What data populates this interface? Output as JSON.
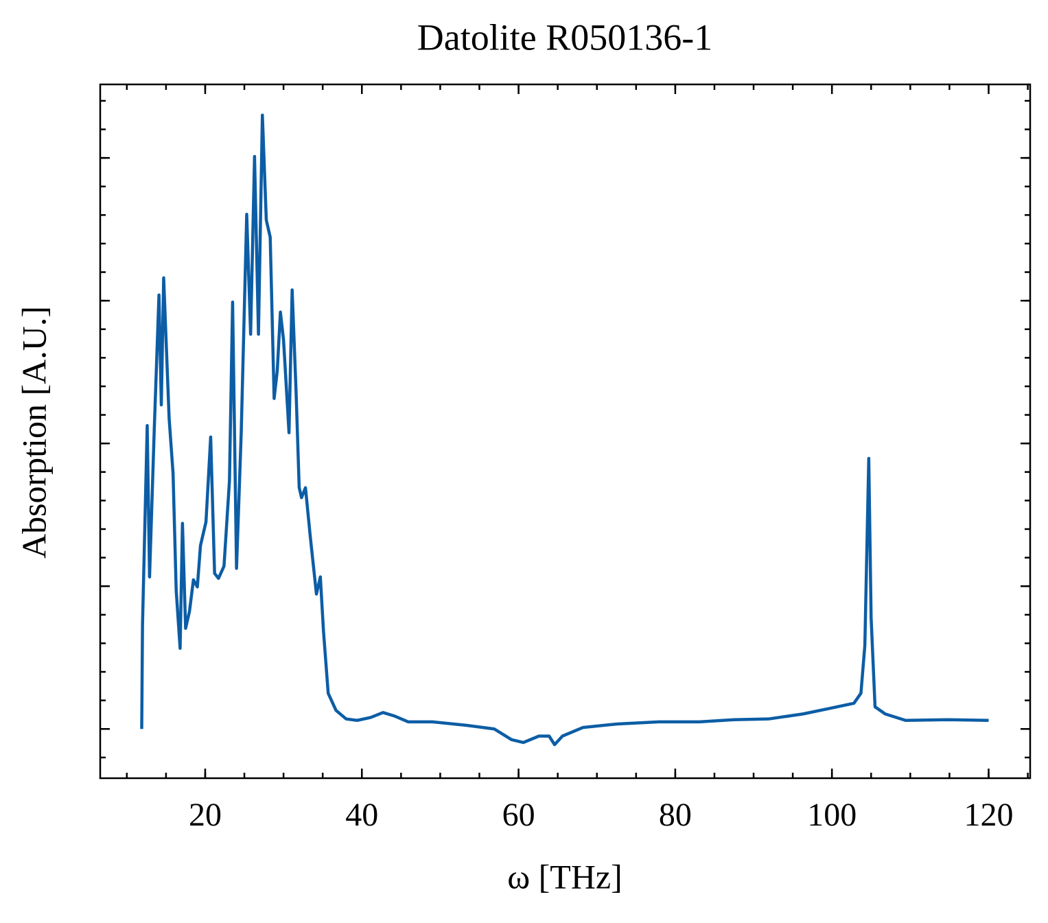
{
  "chart_data": {
    "type": "line",
    "title": "Datolite R050136-1",
    "xlabel": "ω [THz]",
    "ylabel": "Absorption [A.U.]",
    "series": [
      {
        "color": "#0c5da5",
        "x": [
          11.9,
          12.0,
          12.6,
          12.9,
          13.5,
          14.1,
          14.4,
          14.7,
          15.4,
          15.9,
          16.3,
          16.8,
          17.1,
          17.5,
          18.0,
          18.5,
          19.0,
          19.4,
          20.1,
          20.7,
          21.2,
          21.7,
          22.4,
          23.1,
          23.5,
          24.0,
          24.6,
          25.3,
          25.8,
          26.3,
          26.8,
          27.3,
          27.8,
          28.3,
          28.8,
          29.2,
          29.6,
          30.0,
          30.7,
          31.1,
          31.6,
          32.0,
          32.3,
          32.8,
          33.4,
          34.2,
          34.7,
          35.1,
          35.7,
          36.7,
          38.0,
          39.4,
          41.1,
          42.7,
          44.2,
          45.9,
          49.0,
          53.4,
          56.9,
          59.1,
          60.6,
          62.6,
          63.9,
          64.6,
          65.6,
          68.2,
          72.6,
          77.9,
          83.1,
          87.5,
          91.9,
          96.3,
          99.8,
          102.8,
          103.7,
          104.2,
          104.7,
          105.0,
          105.5,
          106.8,
          109.4,
          114.7,
          120.0
        ],
        "values": [
          0.0,
          0.146,
          0.425,
          0.213,
          0.42,
          0.608,
          0.454,
          0.632,
          0.435,
          0.358,
          0.194,
          0.113,
          0.288,
          0.141,
          0.165,
          0.209,
          0.199,
          0.257,
          0.29,
          0.409,
          0.218,
          0.211,
          0.228,
          0.348,
          0.598,
          0.225,
          0.415,
          0.721,
          0.553,
          0.802,
          0.553,
          0.86,
          0.713,
          0.689,
          0.463,
          0.502,
          0.584,
          0.545,
          0.415,
          0.615,
          0.473,
          0.338,
          0.324,
          0.338,
          0.271,
          0.189,
          0.213,
          0.137,
          0.05,
          0.026,
          0.014,
          0.012,
          0.016,
          0.023,
          0.018,
          0.01,
          0.01,
          0.005,
          0.0,
          -0.015,
          -0.019,
          -0.01,
          -0.01,
          -0.022,
          -0.01,
          0.002,
          0.007,
          0.01,
          0.01,
          0.013,
          0.014,
          0.021,
          0.029,
          0.036,
          0.05,
          0.117,
          0.379,
          0.156,
          0.031,
          0.021,
          0.012,
          0.013,
          0.012
        ]
      }
    ],
    "xlim": [
      6.6,
      125.3
    ],
    "xticks": [
      20,
      40,
      60,
      80,
      100,
      120
    ],
    "ylim": [
      -0.069,
      0.903
    ],
    "yticks": [
      0,
      0.2,
      0.4,
      0.6,
      0.8
    ],
    "ytick_labels": false,
    "xminor_divisions": 4,
    "yminor_divisions": 5,
    "mirror_ticks": true
  }
}
